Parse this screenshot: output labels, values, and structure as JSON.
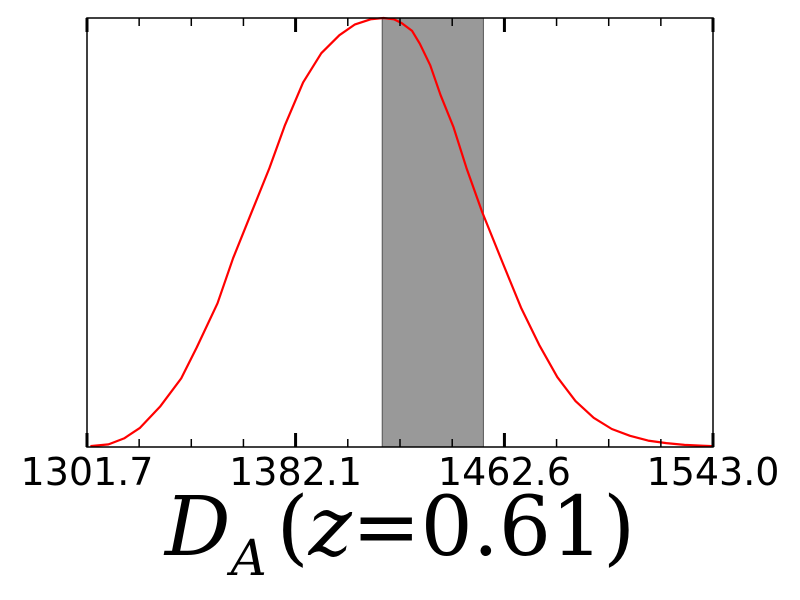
{
  "chart_data": {
    "type": "line",
    "xlim": [
      1301.7,
      1543.0
    ],
    "ylim": [
      0,
      1.0
    ],
    "x_ticks": [
      "1301.7",
      "1382.1",
      "1462.6",
      "1543.0"
    ],
    "xlabel": {
      "symbol": "D",
      "subscript": "A",
      "open_paren": "(",
      "variable": "z",
      "equals": "=",
      "value": "0.61",
      "close_paren": ")"
    },
    "shaded_band": {
      "x_start": 1415.5,
      "x_end": 1454.5,
      "color": "#999999"
    },
    "series": [
      {
        "color": "#ff0000",
        "x": [
          1303,
          1310,
          1316,
          1322,
          1330,
          1338,
          1344,
          1352,
          1358,
          1365,
          1372,
          1378,
          1385,
          1392,
          1399,
          1405,
          1411,
          1416,
          1420,
          1423,
          1427,
          1430,
          1434,
          1438,
          1443,
          1448,
          1454,
          1462,
          1469,
          1476,
          1483,
          1490,
          1497,
          1504,
          1511,
          1518,
          1525,
          1532,
          1539,
          1542.5
        ],
        "y": [
          0.002,
          0.006,
          0.02,
          0.044,
          0.095,
          0.16,
          0.232,
          0.335,
          0.44,
          0.545,
          0.65,
          0.75,
          0.85,
          0.918,
          0.96,
          0.985,
          0.997,
          1.0,
          0.997,
          0.988,
          0.97,
          0.94,
          0.89,
          0.82,
          0.745,
          0.65,
          0.548,
          0.428,
          0.325,
          0.238,
          0.163,
          0.107,
          0.068,
          0.042,
          0.026,
          0.015,
          0.009,
          0.005,
          0.003,
          0.002
        ]
      }
    ]
  }
}
